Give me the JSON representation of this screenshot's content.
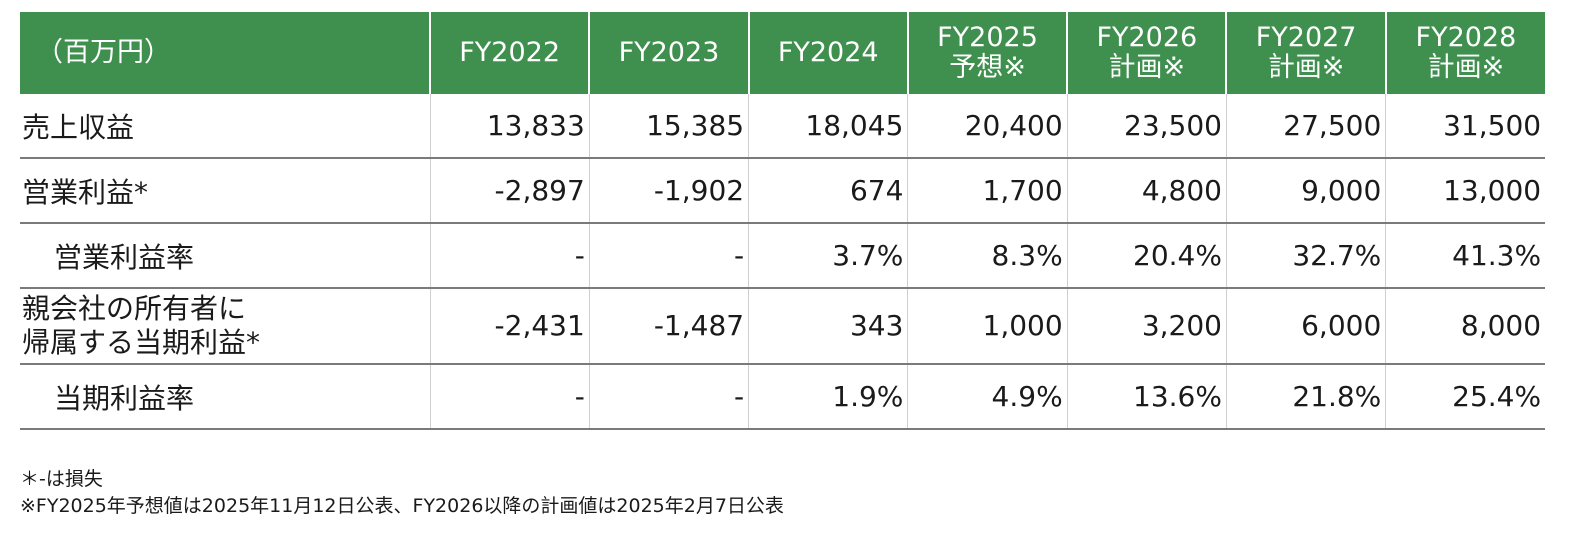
{
  "table": {
    "unit_label": "（百万円）",
    "columns": [
      {
        "line1": "FY2022",
        "line2": ""
      },
      {
        "line1": "FY2023",
        "line2": ""
      },
      {
        "line1": "FY2024",
        "line2": ""
      },
      {
        "line1": "FY2025",
        "line2": "予想※"
      },
      {
        "line1": "FY2026",
        "line2": "計画※"
      },
      {
        "line1": "FY2027",
        "line2": "計画※"
      },
      {
        "line1": "FY2028",
        "line2": "計画※"
      }
    ],
    "rows": [
      {
        "label1": "売上収益",
        "label2": "",
        "values": [
          "13,833",
          "15,385",
          "18,045",
          "20,400",
          "23,500",
          "27,500",
          "31,500"
        ]
      },
      {
        "label1": "営業利益*",
        "label2": "",
        "values": [
          "-2,897",
          "-1,902",
          "674",
          "1,700",
          "4,800",
          "9,000",
          "13,000"
        ]
      },
      {
        "label1": "営業利益率",
        "label2": "",
        "values": [
          "-",
          "-",
          "3.7%",
          "8.3%",
          "20.4%",
          "32.7%",
          "41.3%"
        ]
      },
      {
        "label1": "親会社の所有者に",
        "label2": "帰属する当期利益*",
        "values": [
          "-2,431",
          "-1,487",
          "343",
          "1,000",
          "3,200",
          "6,000",
          "8,000"
        ]
      },
      {
        "label1": "当期利益率",
        "label2": "",
        "values": [
          "-",
          "-",
          "1.9%",
          "4.9%",
          "13.6%",
          "21.8%",
          "25.4%"
        ]
      }
    ]
  },
  "notes": {
    "loss_note": "＊-は損失",
    "plan_note": "※FY2025年予想値は2025年11月12日公表、FY2026以降の計画値は2025年2月7日公表"
  },
  "colors": {
    "header_bg": "#3f8f4f",
    "header_text": "#ffffff",
    "row_border": "#7a7a7a"
  }
}
